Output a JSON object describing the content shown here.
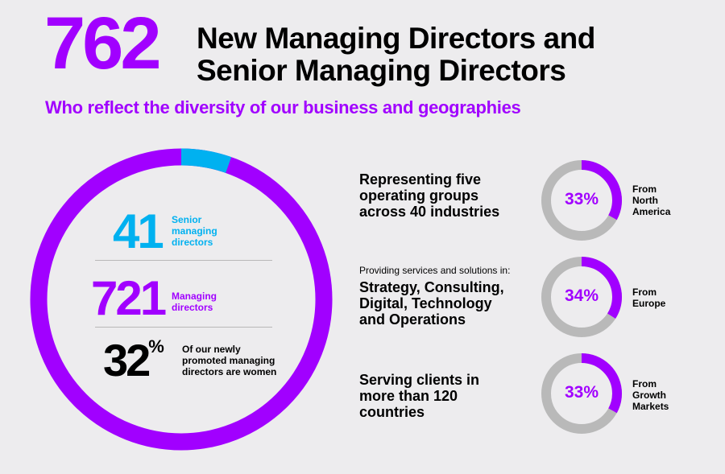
{
  "header": {
    "number": "762",
    "title_line1": "New Managing Directors and",
    "title_line2": "Senior Managing Directors",
    "subtitle": "Who reflect the diversity of our business and geographies"
  },
  "stats": {
    "senior": {
      "value": "41",
      "label_line1": "Senior",
      "label_line2": "managing",
      "label_line3": "directors"
    },
    "managing": {
      "value": "721",
      "label_line1": "Managing",
      "label_line2": "directors"
    },
    "women": {
      "value": "32",
      "unit": "%",
      "label_line1": "Of our newly",
      "label_line2": "promoted managing",
      "label_line3": "directors are women"
    }
  },
  "right": {
    "groups": {
      "line1": "Representing five",
      "line2": "operating groups",
      "line3": "across 40 industries"
    },
    "services": {
      "intro": "Providing services and solutions in:",
      "line1": "Strategy, Consulting,",
      "line2": "Digital, Technology",
      "line3": "and Operations"
    },
    "clients": {
      "line1": "Serving clients in",
      "line2": "more than 120",
      "line3": "countries"
    }
  },
  "donuts": [
    {
      "pct": "33%",
      "label_line1": "From",
      "label_line2": "North",
      "label_line3": "America"
    },
    {
      "pct": "34%",
      "label_line1": "From",
      "label_line2": "Europe",
      "label_line3": ""
    },
    {
      "pct": "33%",
      "label_line1": "From",
      "label_line2": "Growth",
      "label_line3": "Markets"
    }
  ],
  "colors": {
    "purple": "#a100ff",
    "blue": "#00b1f0",
    "gray": "#b9b9b9",
    "black": "#000000"
  },
  "chart_data": [
    {
      "type": "pie",
      "categories": [
        "Senior managing directors",
        "Managing directors"
      ],
      "values": [
        41,
        721
      ]
    },
    {
      "type": "pie",
      "categories": [
        "From North America",
        "From Europe",
        "From Growth Markets"
      ],
      "values": [
        33,
        34,
        33
      ]
    }
  ]
}
